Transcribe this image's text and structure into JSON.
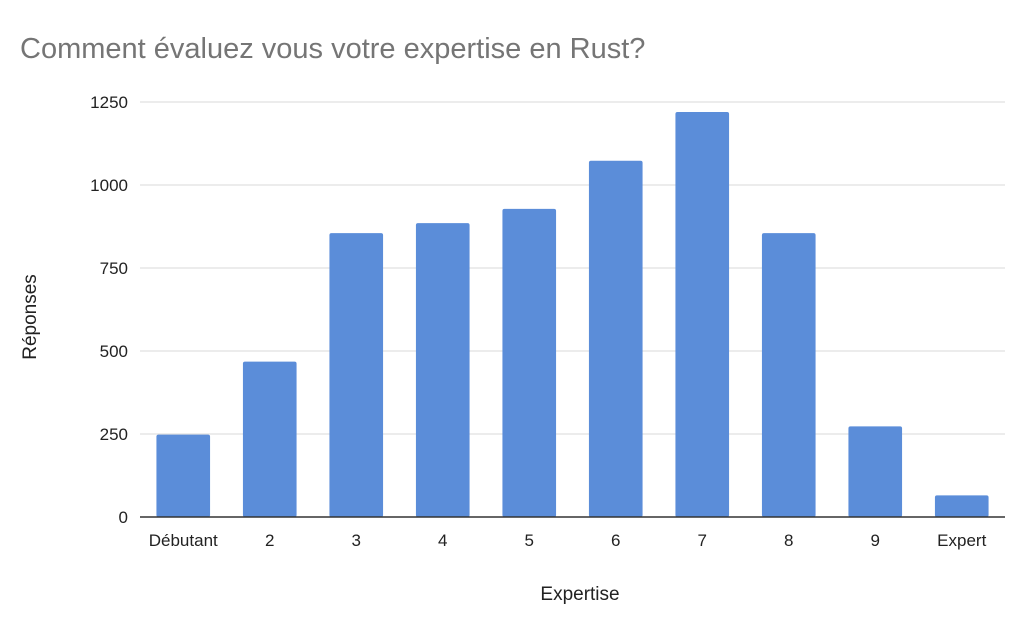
{
  "chart_data": {
    "type": "bar",
    "title": "Comment évaluez vous votre expertise en Rust?",
    "xlabel": "Expertise",
    "ylabel": "Réponses",
    "categories": [
      "Débutant",
      "2",
      "3",
      "4",
      "5",
      "6",
      "7",
      "8",
      "9",
      "Expert"
    ],
    "values": [
      248,
      468,
      855,
      885,
      928,
      1073,
      1220,
      855,
      273,
      65
    ],
    "ylim": [
      0,
      1250
    ],
    "yticks": [
      0,
      250,
      500,
      750,
      1000,
      1250
    ],
    "ytick_labels": [
      "0",
      "250",
      "500",
      "750",
      "1000",
      "1250"
    ],
    "grid": true,
    "legend": "none",
    "bar_color": "#5b8dd9",
    "title_color": "#757575"
  }
}
